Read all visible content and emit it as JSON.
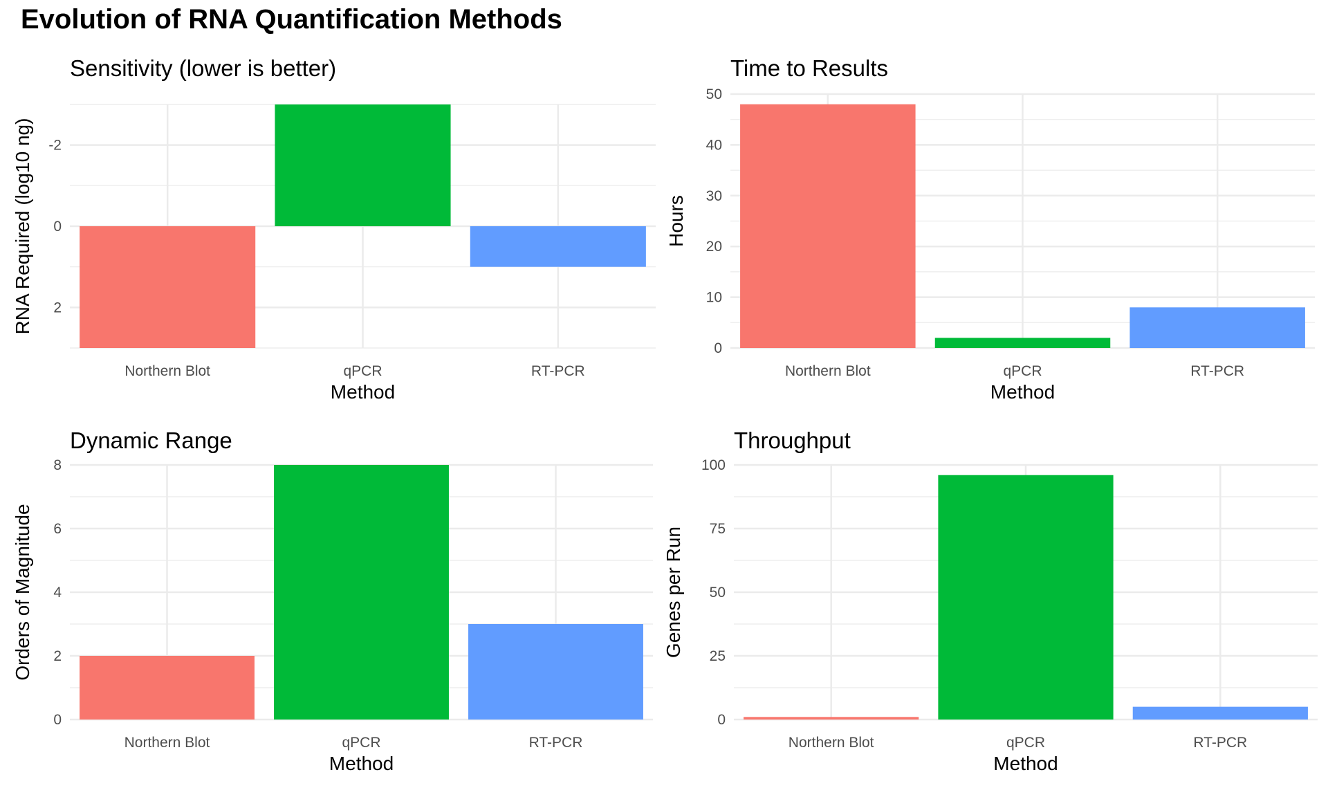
{
  "title": "Evolution of RNA Quantification Methods",
  "colors": {
    "Northern Blot": "#F8766D",
    "qPCR": "#00BA38",
    "RT-PCR": "#619CFF"
  },
  "chart_data": [
    {
      "type": "bar",
      "title": "Sensitivity (lower is better)",
      "xlabel": "Method",
      "ylabel": "RNA Required (log10 ng)",
      "categories": [
        "Northern Blot",
        "qPCR",
        "RT-PCR"
      ],
      "values": [
        3,
        -3,
        1
      ],
      "ylim": [
        3,
        -3
      ],
      "y_reversed": true,
      "yticks": [
        -2,
        0,
        2
      ],
      "grid": true
    },
    {
      "type": "bar",
      "title": "Time to Results",
      "xlabel": "Method",
      "ylabel": "Hours",
      "categories": [
        "Northern Blot",
        "qPCR",
        "RT-PCR"
      ],
      "values": [
        48,
        2,
        8
      ],
      "ylim": [
        0,
        50
      ],
      "yticks": [
        0,
        10,
        20,
        30,
        40,
        50
      ],
      "grid": true
    },
    {
      "type": "bar",
      "title": "Dynamic Range",
      "xlabel": "Method",
      "ylabel": "Orders of Magnitude",
      "categories": [
        "Northern Blot",
        "qPCR",
        "RT-PCR"
      ],
      "values": [
        2,
        8,
        3
      ],
      "ylim": [
        0,
        8
      ],
      "yticks": [
        0,
        2,
        4,
        6,
        8
      ],
      "grid": true
    },
    {
      "type": "bar",
      "title": "Throughput",
      "xlabel": "Method",
      "ylabel": "Genes per Run",
      "categories": [
        "Northern Blot",
        "qPCR",
        "RT-PCR"
      ],
      "values": [
        1,
        96,
        5
      ],
      "ylim": [
        0,
        100
      ],
      "yticks": [
        0,
        25,
        50,
        75,
        100
      ],
      "grid": true
    }
  ]
}
